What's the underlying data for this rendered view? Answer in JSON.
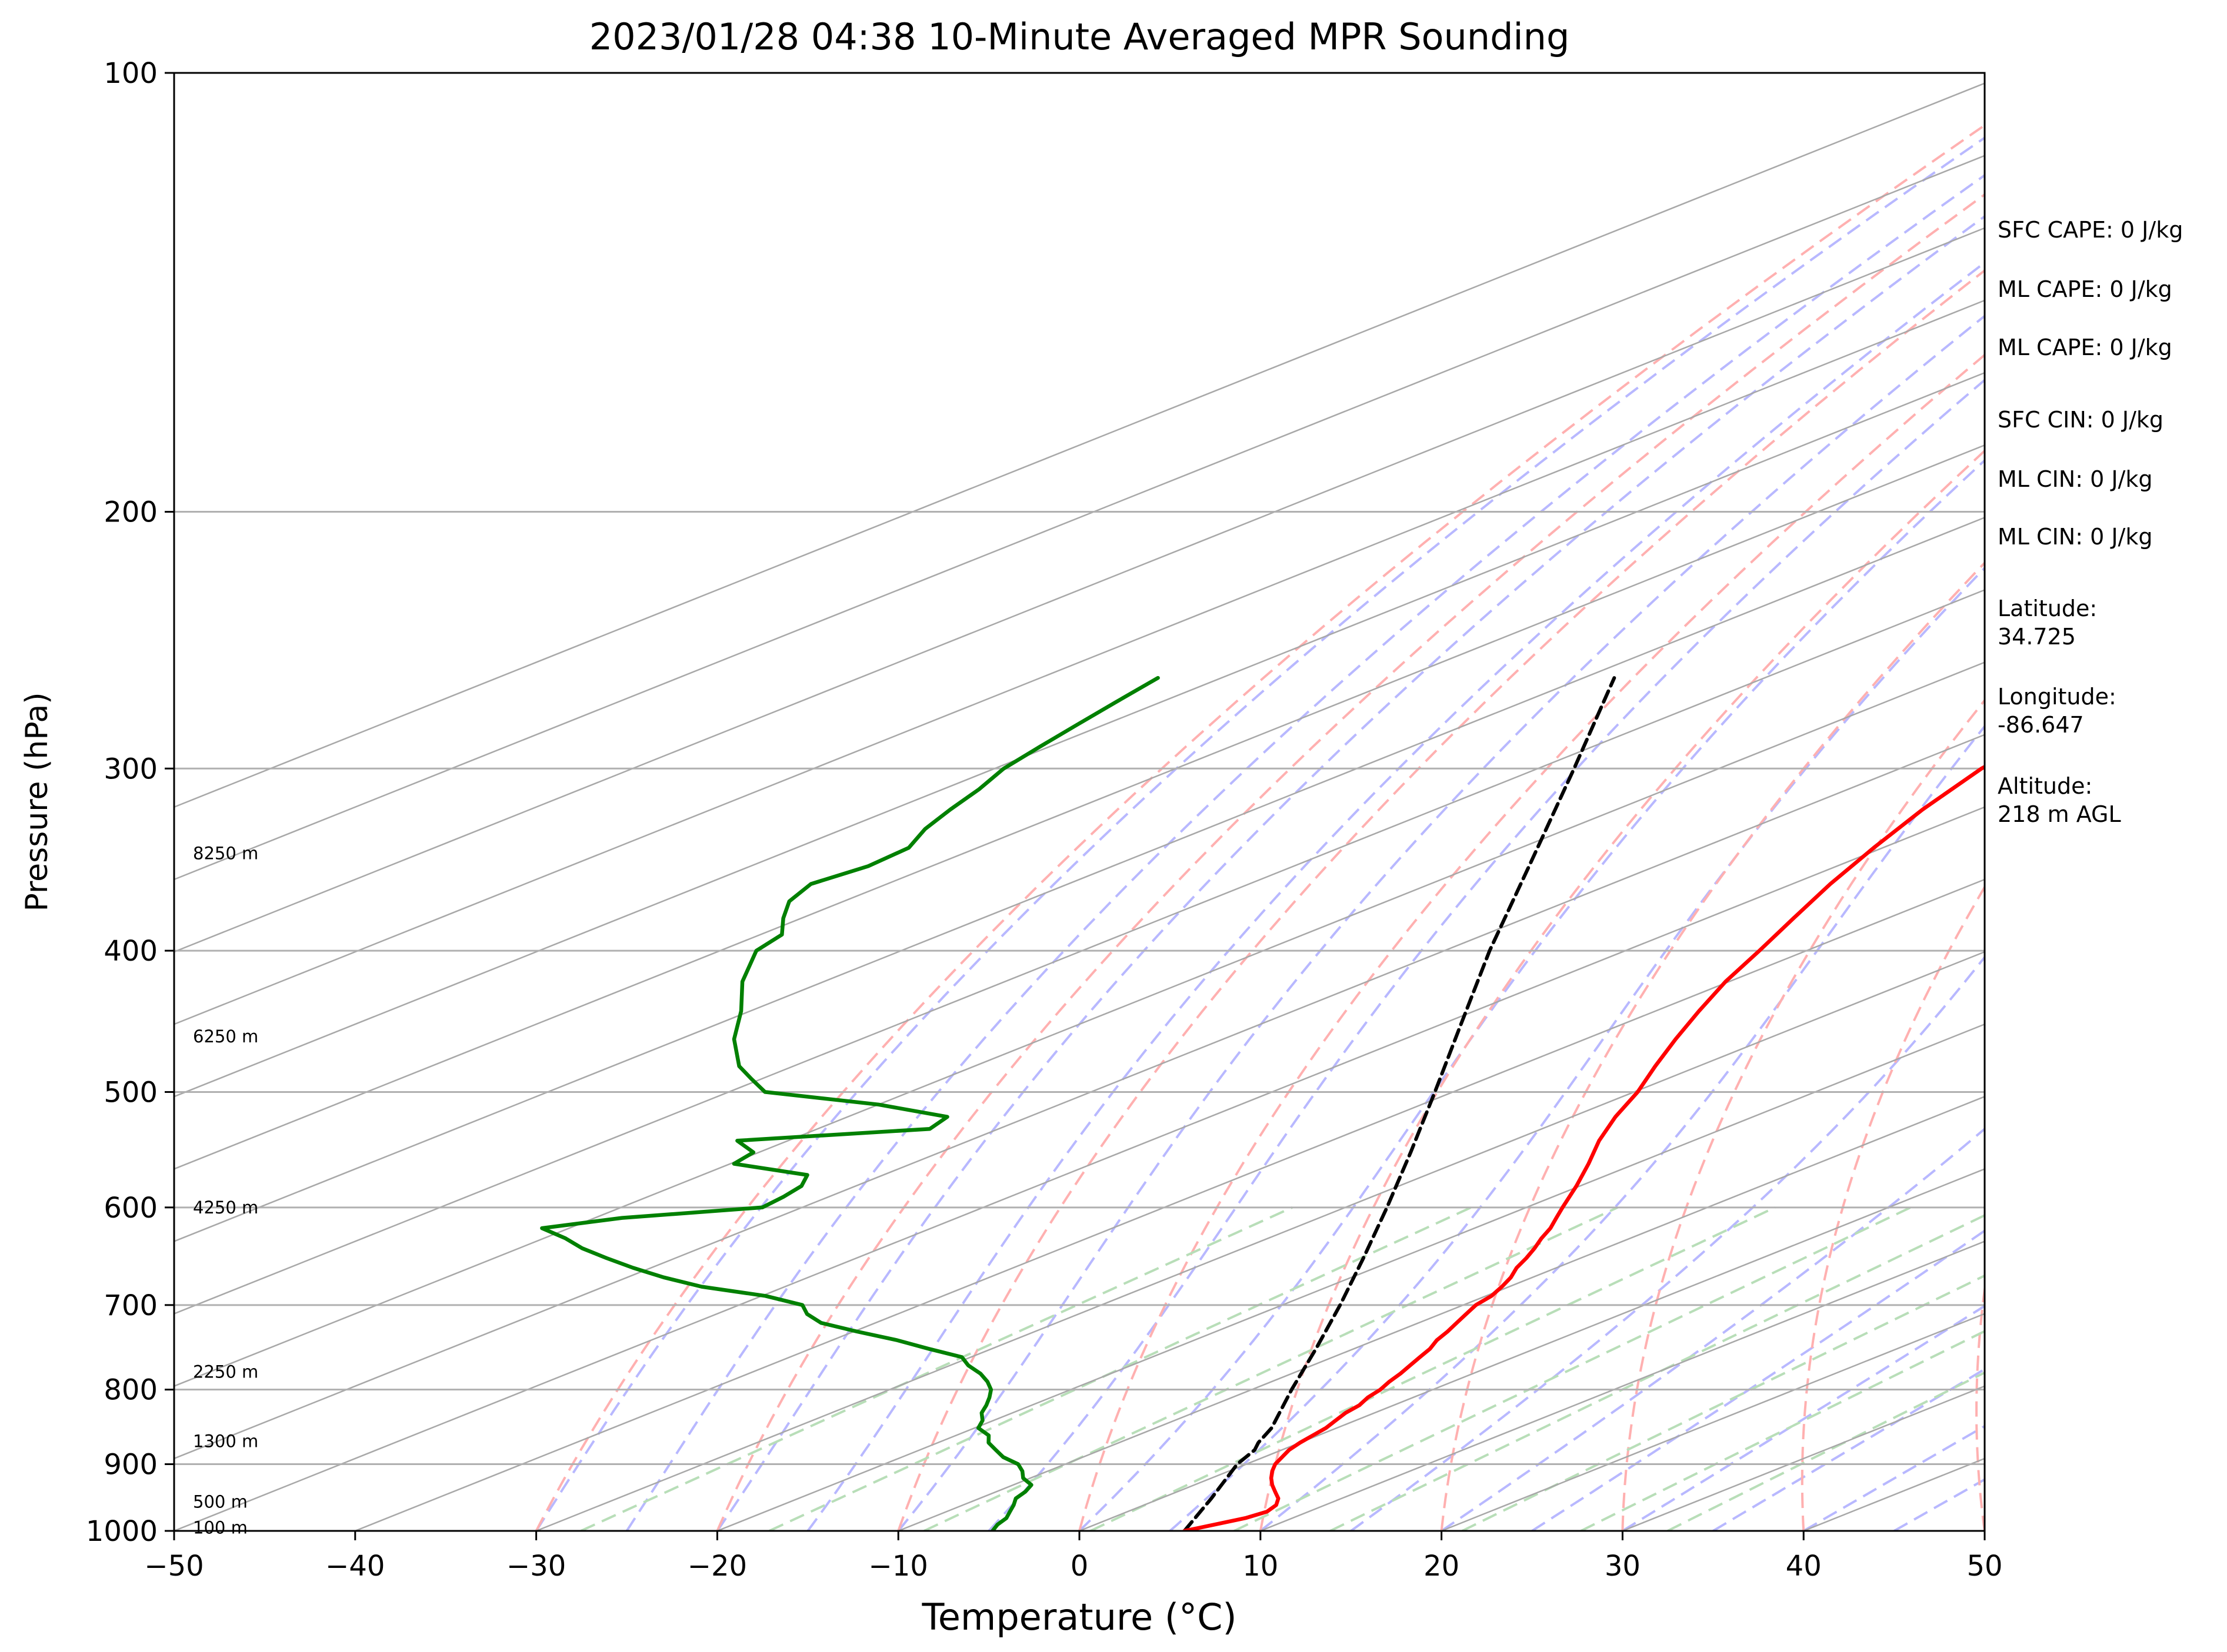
{
  "chart_data": {
    "type": "skew-t",
    "title": "2023/01/28 04:38 10-Minute Averaged MPR Sounding",
    "xlabel": "Temperature (°C)",
    "ylabel": "Pressure (hPa)",
    "xlim": [
      -50,
      50
    ],
    "ylim": [
      1000,
      100
    ],
    "y_scale": "log",
    "x_ticks": [
      "−50",
      "−40",
      "−30",
      "−20",
      "−10",
      "0",
      "10",
      "20",
      "30",
      "40",
      "50"
    ],
    "y_ticks": [
      {
        "p": 100,
        "label": "100"
      },
      {
        "p": 200,
        "label": "200"
      },
      {
        "p": 300,
        "label": "300"
      },
      {
        "p": 400,
        "label": "400"
      },
      {
        "p": 500,
        "label": "500"
      },
      {
        "p": 600,
        "label": "600"
      },
      {
        "p": 700,
        "label": "700"
      },
      {
        "p": 800,
        "label": "800"
      },
      {
        "p": 900,
        "label": "900"
      },
      {
        "p": 1000,
        "label": "1000"
      }
    ],
    "grid": true,
    "colors": {
      "temperature": "#ff0000",
      "dewpoint": "#008000",
      "parcel": "#000000",
      "isobar": "#b0b0b0",
      "isotherm": "#a8a8a8",
      "dry_adiabat": "#ffb0b0",
      "moist_adiabat": "#b8b8ff",
      "mixing_ratio": "#b8deb8"
    },
    "temperature_series": {
      "p": [
        1000,
        990,
        980,
        970,
        960,
        950,
        940,
        930,
        920,
        910,
        900,
        890,
        880,
        870,
        860,
        850,
        840,
        830,
        820,
        810,
        800,
        790,
        780,
        770,
        760,
        750,
        740,
        730,
        720,
        710,
        700,
        690,
        680,
        670,
        660,
        650,
        640,
        630,
        620,
        610,
        600,
        580,
        560,
        540,
        520,
        500,
        480,
        460,
        440,
        420,
        400,
        380,
        360,
        340,
        320,
        300,
        290,
        280,
        270,
        260
      ],
      "t": [
        5.8,
        6.6,
        7.4,
        7.7,
        7.3,
        6.5,
        5.4,
        4.3,
        3.3,
        2.4,
        1.6,
        1.0,
        0.4,
        0.0,
        -0.3,
        -0.6,
        -1.1,
        -1.6,
        -1.9,
        -2.5,
        -2.9,
        -3.5,
        -4.0,
        -4.6,
        -5.2,
        -5.8,
        -6.6,
        -7.2,
        -7.9,
        -8.6,
        -9.3,
        -9.7,
        -10.4,
        -11.2,
        -12.2,
        -13.0,
        -13.9,
        -14.9,
        -15.8,
        -16.9,
        -18.0,
        -20.2,
        -22.6,
        -25.2,
        -27.6,
        -29.8,
        -32.4,
        -35.0,
        -37.6,
        -40.2,
        -42.6,
        -45.2,
        -47.9,
        -50.5,
        -53.1,
        -55.5,
        -56.2,
        -57.1,
        -58.1,
        -59.2
      ]
    },
    "dewpoint_series": {
      "p": [
        1000,
        990,
        980,
        970,
        960,
        950,
        940,
        930,
        920,
        910,
        900,
        890,
        880,
        870,
        860,
        850,
        840,
        830,
        820,
        810,
        800,
        790,
        780,
        770,
        760,
        750,
        740,
        730,
        720,
        710,
        700,
        690,
        680,
        670,
        660,
        650,
        640,
        630,
        620,
        610,
        600,
        590,
        580,
        570,
        560,
        550,
        540,
        530,
        520,
        510,
        500,
        490,
        480,
        460,
        440,
        420,
        400,
        390,
        380,
        370,
        360,
        350,
        340,
        330,
        320,
        310,
        300,
        290,
        280,
        270,
        260
      ],
      "td": [
        -4.8,
        -5.4,
        -5.8,
        -6.5,
        -7.2,
        -8.0,
        -8.4,
        -9.0,
        -10.4,
        -11.4,
        -12.6,
        -14.4,
        -15.8,
        -17.2,
        -18.2,
        -19.8,
        -20.6,
        -21.7,
        -22.5,
        -23.4,
        -24.4,
        -25.7,
        -27.2,
        -29.0,
        -30.5,
        -33.5,
        -36.4,
        -39.8,
        -43.0,
        -45.0,
        -46.5,
        -49.8,
        -54.6,
        -58.0,
        -61.0,
        -63.8,
        -66.5,
        -68.8,
        -71.5,
        -68.5,
        -62.2,
        -62.5,
        -63.0,
        -64.2,
        -69.8,
        -70.3,
        -72.8,
        -63.8,
        -64.5,
        -70.0,
        -78.0,
        -80.5,
        -83.0,
        -87.0,
        -90.5,
        -94.5,
        -98.0,
        -98.8,
        -101.0,
        -103.0,
        -104.2,
        -103.5,
        -103.8,
        -105.5,
        -106.8,
        -108.0,
        -109.5,
        -110.5,
        -111.5,
        -112.5,
        -113.5
      ]
    },
    "parcel_series": {
      "p": [
        1000,
        950,
        900,
        880,
        870,
        850,
        800,
        750,
        700,
        650,
        600,
        550,
        500,
        450,
        400,
        350,
        300,
        260
      ],
      "t": [
        5.8,
        2.8,
        -0.5,
        -1.5,
        -2.3,
        -3.6,
        -7.8,
        -12.1,
        -16.8,
        -22.0,
        -27.7,
        -34.0,
        -41.0,
        -48.8,
        -57.5,
        -67.0,
        -78.0,
        -88.3
      ]
    },
    "wind_height_labels": [
      {
        "p": 995,
        "label": "100 m"
      },
      {
        "p": 955,
        "label": "500 m"
      },
      {
        "p": 868,
        "label": "1300 m"
      },
      {
        "p": 778,
        "label": "2250 m"
      },
      {
        "p": 600,
        "label": "4250 m"
      },
      {
        "p": 458,
        "label": "6250 m"
      },
      {
        "p": 343,
        "label": "8250 m"
      }
    ],
    "annotations": [
      {
        "label": "SFC CAPE: 0 J/kg"
      },
      {
        "label": "ML CAPE: 0 J/kg"
      },
      {
        "label": "ML CAPE: 0 J/kg"
      },
      {
        "label": "SFC CIN: 0 J/kg"
      },
      {
        "label": "ML CIN: 0 J/kg"
      },
      {
        "label": "ML CIN: 0 J/kg"
      },
      {
        "label": "Latitude:\n34.725"
      },
      {
        "label": "Longitude:\n-86.647"
      },
      {
        "label": "Altitude:\n218 m AGL"
      }
    ]
  }
}
